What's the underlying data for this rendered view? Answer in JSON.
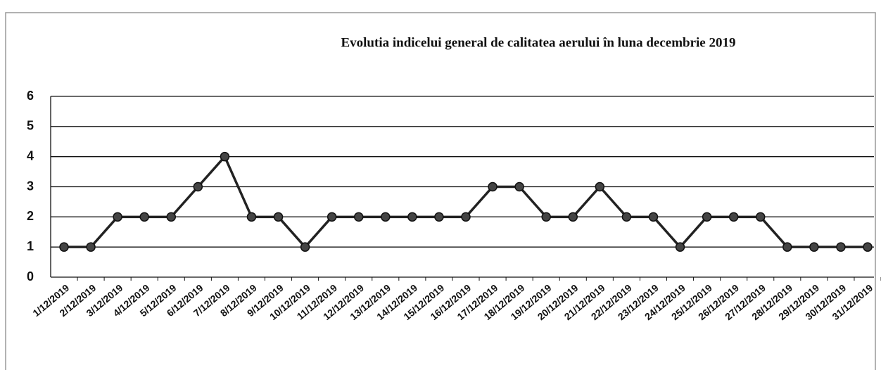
{
  "chart_data": {
    "type": "line",
    "title": "Evolutia indicelui  general de calitatea aerului în luna decembrie 2019",
    "categories": [
      "1/12/2019",
      "2/12/2019",
      "3/12/2019",
      "4/12/2019",
      "5/12/2019",
      "6/12/2019",
      "7/12/2019",
      "8/12/2019",
      "9/12/2019",
      "10/12/2019",
      "11/12/2019",
      "12/12/2019",
      "13/12/2019",
      "14/12/2019",
      "15/12/2019",
      "16/12/2019",
      "17/12/2019",
      "18/12/2019",
      "19/12/2019",
      "20/12/2019",
      "21/12/2019",
      "22/12/2019",
      "23/12/2019",
      "24/12/2019",
      "25/12/2019",
      "26/12/2019",
      "27/12/2019",
      "28/12/2019",
      "29/12/2019",
      "30/12/2019",
      "31/12/2019"
    ],
    "values": [
      1,
      1,
      2,
      2,
      2,
      3,
      4,
      2,
      2,
      1,
      2,
      2,
      2,
      2,
      2,
      2,
      3,
      3,
      2,
      2,
      3,
      2,
      2,
      1,
      2,
      2,
      2,
      1,
      1,
      1,
      1
    ],
    "color": "#222222",
    "ylim": [
      0,
      6
    ],
    "yticks": [
      0,
      1,
      2,
      3,
      4,
      5,
      6
    ],
    "grid": true
  }
}
